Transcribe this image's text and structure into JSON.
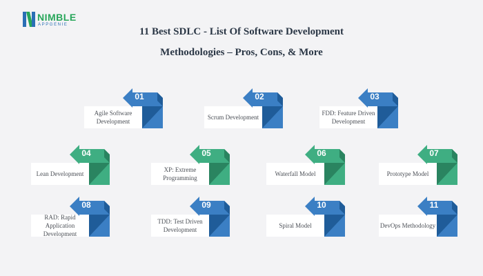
{
  "brand": {
    "name": "NIMBLE",
    "sub": "APPGENIE",
    "green": "#27a65a",
    "blue": "#2a6fb5"
  },
  "title_line1": "11 Best SDLC - List Of Software Development",
  "title_line2": "Methodologies – Pros, Cons, & More",
  "colors": {
    "blue_light": "#3b7fc4",
    "blue_dark": "#1f5c99",
    "green_light": "#3fae82",
    "green_dark": "#2a8460"
  },
  "items": [
    {
      "num": "01",
      "label": "Agile Software Development",
      "color": "blue"
    },
    {
      "num": "02",
      "label": "Scrum Development",
      "color": "blue"
    },
    {
      "num": "03",
      "label": "FDD: Feature Driven Development",
      "color": "blue"
    },
    {
      "num": "04",
      "label": "Lean Development",
      "color": "green"
    },
    {
      "num": "05",
      "label": "XP: Extreme Programming",
      "color": "green"
    },
    {
      "num": "06",
      "label": "Waterfall Model",
      "color": "green"
    },
    {
      "num": "07",
      "label": "Prototype Model",
      "color": "green"
    },
    {
      "num": "08",
      "label": "RAD: Rapid Application Development",
      "color": "blue"
    },
    {
      "num": "09",
      "label": "TDD: Test Driven Development",
      "color": "blue"
    },
    {
      "num": "10",
      "label": "Spiral Model",
      "color": "blue"
    },
    {
      "num": "11",
      "label": "DevOps Methodology",
      "color": "blue"
    }
  ]
}
